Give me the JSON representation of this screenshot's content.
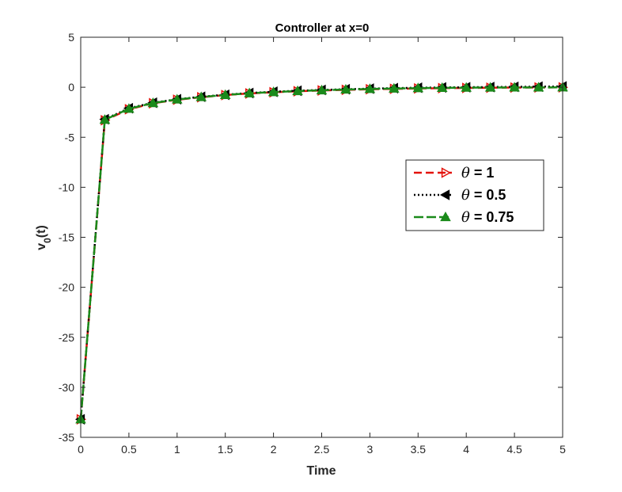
{
  "chart_data": {
    "type": "line",
    "title": "Controller at x=0",
    "xlabel": "Time",
    "ylabel_main": "v",
    "ylabel_sub": "0",
    "ylabel_suffix": "(t)",
    "xlim": [
      0,
      5
    ],
    "ylim": [
      -35,
      5
    ],
    "xticks": [
      0,
      0.5,
      1,
      1.5,
      2,
      2.5,
      3,
      3.5,
      4,
      4.5,
      5
    ],
    "xtick_labels": [
      "0",
      "0.5",
      "1",
      "1.5",
      "2",
      "2.5",
      "3",
      "3.5",
      "4",
      "4.5",
      "5"
    ],
    "yticks": [
      -35,
      -30,
      -25,
      -20,
      -15,
      -10,
      -5,
      0,
      5
    ],
    "ytick_labels": [
      "-35",
      "-30",
      "-25",
      "-20",
      "-15",
      "-10",
      "-5",
      "0",
      "5"
    ],
    "grid": false,
    "legend_position": "right",
    "x": [
      0,
      0.25,
      0.5,
      0.75,
      1,
      1.25,
      1.5,
      1.75,
      2,
      2.25,
      2.5,
      2.75,
      3,
      3.25,
      3.5,
      3.75,
      4,
      4.25,
      4.5,
      4.75,
      5
    ],
    "series": [
      {
        "name": "θ = 1",
        "legend_symbol": "θ",
        "legend_value": " = 1",
        "color": "#e3120b",
        "dash": "10,5",
        "marker": "triangle-right",
        "marker_fill": "none",
        "values": [
          -33.2,
          -3.3,
          -2.2,
          -1.6,
          -1.25,
          -1.0,
          -0.78,
          -0.62,
          -0.5,
          -0.4,
          -0.32,
          -0.26,
          -0.2,
          -0.16,
          -0.12,
          -0.09,
          -0.07,
          -0.05,
          -0.03,
          -0.02,
          -0.01
        ]
      },
      {
        "name": "θ = 0.5",
        "legend_symbol": "θ",
        "legend_value": " = 0.5",
        "color": "#000000",
        "dash": "2,3",
        "marker": "triangle-left",
        "marker_fill": "#000000",
        "values": [
          -33.2,
          -3.2,
          -2.1,
          -1.55,
          -1.2,
          -0.95,
          -0.75,
          -0.58,
          -0.45,
          -0.35,
          -0.27,
          -0.2,
          -0.14,
          -0.09,
          -0.05,
          -0.02,
          0.0,
          0.02,
          0.04,
          0.06,
          0.08
        ]
      },
      {
        "name": "θ = 0.75",
        "legend_symbol": "θ",
        "legend_value": " = 0.75",
        "color": "#1a8a1a",
        "dash": "12,4",
        "marker": "triangle-up",
        "marker_fill": "#1a8a1a",
        "values": [
          -33.2,
          -3.25,
          -2.15,
          -1.58,
          -1.22,
          -0.98,
          -0.77,
          -0.6,
          -0.48,
          -0.38,
          -0.3,
          -0.23,
          -0.17,
          -0.13,
          -0.09,
          -0.06,
          -0.04,
          -0.03,
          -0.02,
          -0.02,
          -0.01
        ]
      }
    ]
  }
}
